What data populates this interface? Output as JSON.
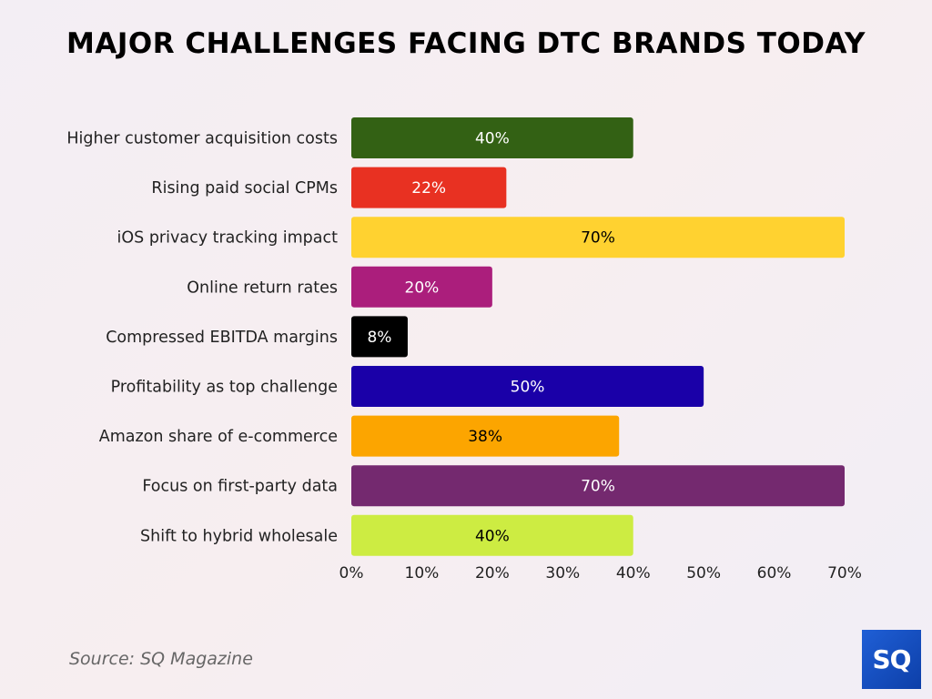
{
  "chart_data": {
    "type": "bar",
    "orientation": "horizontal",
    "title": "MAJOR CHALLENGES FACING DTC BRANDS TODAY",
    "categories": [
      "Higher customer acquisition costs",
      "Rising paid social CPMs",
      "iOS privacy tracking impact",
      "Online return rates",
      "Compressed EBITDA margins",
      "Profitability as top challenge",
      "Amazon share of e-commerce",
      "Focus on first-party data",
      "Shift to hybrid wholesale"
    ],
    "values": [
      40,
      22,
      70,
      20,
      8,
      50,
      38,
      70,
      40
    ],
    "data_labels": [
      "40%",
      "22%",
      "70%",
      "20%",
      "8%",
      "50%",
      "38%",
      "70%",
      "40%"
    ],
    "colors": [
      "#336114",
      "#e83122",
      "#ffd230",
      "#ab1e7c",
      "#000000",
      "#1a00a8",
      "#fca500",
      "#74296f",
      "#cdec42"
    ],
    "label_colors": [
      "#ffffff",
      "#ffffff",
      "#000000",
      "#ffffff",
      "#ffffff",
      "#ffffff",
      "#000000",
      "#ffffff",
      "#000000"
    ],
    "xlim": [
      0,
      70
    ],
    "xticks": [
      "0%",
      "10%",
      "20%",
      "30%",
      "40%",
      "50%",
      "60%",
      "70%"
    ],
    "grid": false,
    "legend": "none"
  },
  "source": "Source: SQ Magazine",
  "logo_text": "SQ"
}
